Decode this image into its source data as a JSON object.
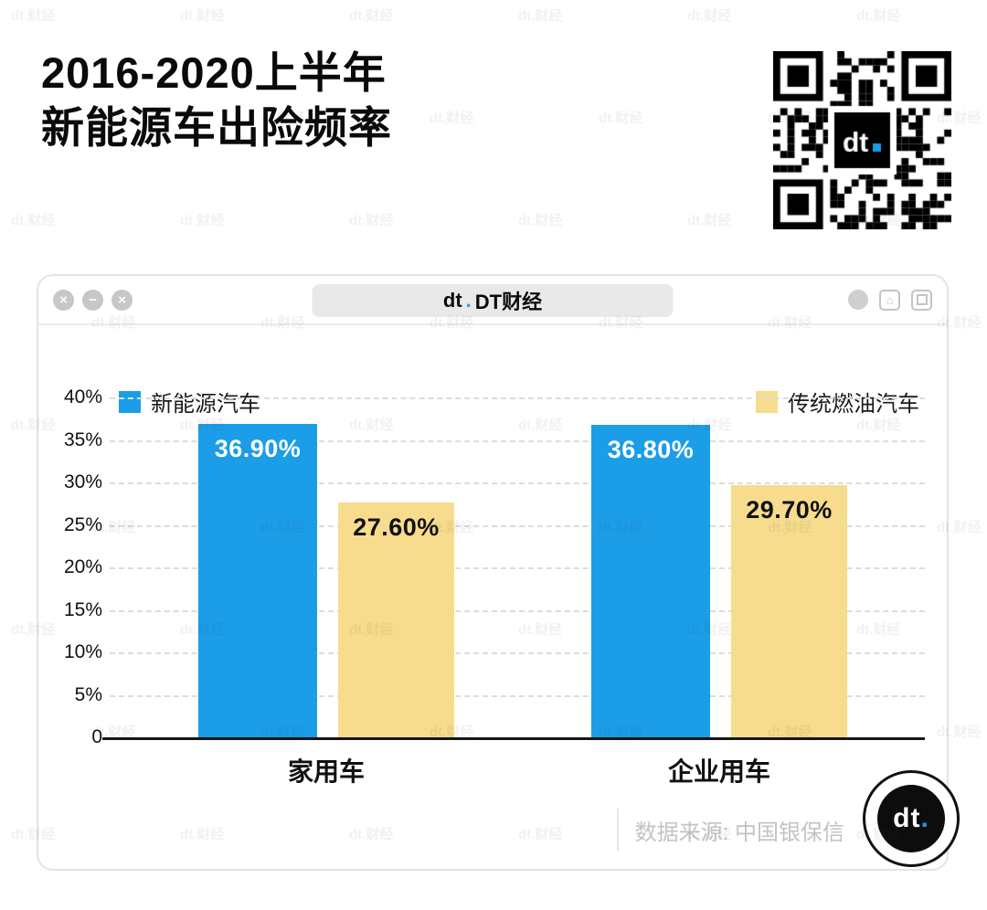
{
  "header": {
    "title_line1": "2016-2020上半年",
    "title_line2": "新能源车出险频率"
  },
  "watermark": {
    "text": "dt.财经"
  },
  "qr": {
    "logo_text": "dt",
    "logo_dot": "."
  },
  "window": {
    "titlebar": {
      "left_icons": [
        {
          "name": "close-icon",
          "glyph": "×"
        },
        {
          "name": "minimize-icon",
          "glyph": "−"
        },
        {
          "name": "close-icon-2",
          "glyph": "×"
        }
      ],
      "logo_text": "dt",
      "logo_dot": ".",
      "title": "DT财经",
      "right_icons": [
        {
          "name": "profile-icon",
          "glyph": ""
        },
        {
          "name": "home-icon",
          "glyph": "⌂"
        },
        {
          "name": "copy-icon",
          "glyph": ""
        }
      ]
    }
  },
  "chart_data": {
    "type": "bar",
    "title": "2016-2020上半年新能源车出险频率",
    "categories": [
      "家用车",
      "企业用车"
    ],
    "series": [
      {
        "name": "新能源汽车",
        "color": "#1B9DE8",
        "label_color": "#ffffff",
        "values": [
          36.9,
          36.8
        ],
        "labels": [
          "36.90%",
          "36.80%"
        ]
      },
      {
        "name": "传统燃油汽车",
        "color": "#F6DC8C",
        "label_color": "#111111",
        "values": [
          27.6,
          29.7
        ],
        "labels": [
          "27.60%",
          "29.70%"
        ]
      }
    ],
    "y_ticks": [
      "40%",
      "35%",
      "30%",
      "25%",
      "20%",
      "15%",
      "10%",
      "5%",
      "0"
    ],
    "y_max": 40,
    "y_step": 5,
    "grid": "dashed-horizontal",
    "legend_position": "top"
  },
  "footer": {
    "source": "数据来源: 中国银保信",
    "logo_text": "dt",
    "logo_dot": "."
  }
}
